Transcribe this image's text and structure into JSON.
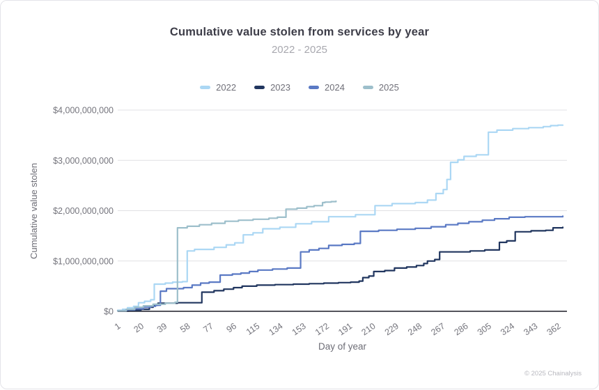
{
  "card": {
    "title": "Cumulative value stolen from services by year",
    "subtitle": "2022 - 2025",
    "footer": "© 2025 Chainalysis"
  },
  "chart_data": {
    "type": "line",
    "style": "step-after",
    "title": "Cumulative value stolen from services by year",
    "subtitle": "2022 - 2025",
    "xlabel": "Day of year",
    "ylabel": "Cumulative value stolen",
    "unit": "USD, point values in billions of dollars",
    "grid": "horizontal",
    "legend_position": "top",
    "xlim": [
      1,
      369
    ],
    "ylim_billions": [
      0,
      4
    ],
    "x_ticks": [
      1,
      20,
      39,
      58,
      77,
      96,
      115,
      134,
      153,
      172,
      191,
      210,
      229,
      248,
      267,
      286,
      305,
      324,
      343,
      362
    ],
    "y_ticks": [
      {
        "v": 0,
        "label": "$0"
      },
      {
        "v": 1,
        "label": "$1,000,000,000"
      },
      {
        "v": 2,
        "label": "$2,000,000,000"
      },
      {
        "v": 3,
        "label": "$3,000,000,000"
      },
      {
        "v": 4,
        "label": "$4,000,000,000"
      }
    ],
    "colors": {
      "grid": "#e0e0e4",
      "zero_axis": "#53535b",
      "axis_text": "#74747c",
      "axis_title_text": "#6d6d76"
    },
    "series": [
      {
        "name": "2022",
        "color": "#abd7f4",
        "points": [
          [
            1,
            0.02
          ],
          [
            5,
            0.04
          ],
          [
            9,
            0.07
          ],
          [
            14,
            0.1
          ],
          [
            18,
            0.17
          ],
          [
            23,
            0.2
          ],
          [
            28,
            0.23
          ],
          [
            31,
            0.54
          ],
          [
            40,
            0.56
          ],
          [
            46,
            0.58
          ],
          [
            54,
            0.59
          ],
          [
            58,
            1.2
          ],
          [
            64,
            1.23
          ],
          [
            80,
            1.27
          ],
          [
            90,
            1.32
          ],
          [
            97,
            1.36
          ],
          [
            104,
            1.52
          ],
          [
            112,
            1.56
          ],
          [
            120,
            1.64
          ],
          [
            134,
            1.67
          ],
          [
            147,
            1.74
          ],
          [
            160,
            1.78
          ],
          [
            174,
            1.88
          ],
          [
            196,
            1.92
          ],
          [
            212,
            2.1
          ],
          [
            226,
            2.14
          ],
          [
            245,
            2.16
          ],
          [
            255,
            2.21
          ],
          [
            262,
            2.34
          ],
          [
            268,
            2.42
          ],
          [
            271,
            2.62
          ],
          [
            274,
            2.96
          ],
          [
            280,
            3.01
          ],
          [
            285,
            3.08
          ],
          [
            295,
            3.11
          ],
          [
            305,
            3.56
          ],
          [
            312,
            3.6
          ],
          [
            325,
            3.63
          ],
          [
            338,
            3.65
          ],
          [
            350,
            3.67
          ],
          [
            356,
            3.69
          ],
          [
            362,
            3.7
          ],
          [
            366,
            3.7
          ]
        ]
      },
      {
        "name": "2023",
        "color": "#21365f",
        "points": [
          [
            1,
            0.01
          ],
          [
            10,
            0.02
          ],
          [
            20,
            0.04
          ],
          [
            27,
            0.08
          ],
          [
            30,
            0.12
          ],
          [
            34,
            0.16
          ],
          [
            50,
            0.17
          ],
          [
            70,
            0.38
          ],
          [
            80,
            0.41
          ],
          [
            88,
            0.44
          ],
          [
            96,
            0.47
          ],
          [
            103,
            0.5
          ],
          [
            115,
            0.52
          ],
          [
            130,
            0.53
          ],
          [
            145,
            0.54
          ],
          [
            158,
            0.55
          ],
          [
            170,
            0.56
          ],
          [
            182,
            0.57
          ],
          [
            192,
            0.58
          ],
          [
            199,
            0.6
          ],
          [
            202,
            0.67
          ],
          [
            207,
            0.7
          ],
          [
            211,
            0.79
          ],
          [
            220,
            0.81
          ],
          [
            228,
            0.86
          ],
          [
            238,
            0.88
          ],
          [
            246,
            0.91
          ],
          [
            252,
            0.95
          ],
          [
            255,
            1.0
          ],
          [
            261,
            1.03
          ],
          [
            265,
            1.18
          ],
          [
            290,
            1.2
          ],
          [
            302,
            1.22
          ],
          [
            314,
            1.37
          ],
          [
            320,
            1.4
          ],
          [
            327,
            1.58
          ],
          [
            340,
            1.6
          ],
          [
            352,
            1.61
          ],
          [
            358,
            1.66
          ],
          [
            366,
            1.67
          ]
        ]
      },
      {
        "name": "2024",
        "color": "#5a79c4",
        "points": [
          [
            1,
            0.01
          ],
          [
            8,
            0.03
          ],
          [
            15,
            0.05
          ],
          [
            22,
            0.08
          ],
          [
            28,
            0.1
          ],
          [
            32,
            0.12
          ],
          [
            36,
            0.4
          ],
          [
            41,
            0.45
          ],
          [
            55,
            0.47
          ],
          [
            62,
            0.52
          ],
          [
            69,
            0.56
          ],
          [
            76,
            0.58
          ],
          [
            85,
            0.72
          ],
          [
            95,
            0.74
          ],
          [
            102,
            0.76
          ],
          [
            109,
            0.79
          ],
          [
            116,
            0.82
          ],
          [
            128,
            0.84
          ],
          [
            140,
            0.86
          ],
          [
            151,
            1.18
          ],
          [
            158,
            1.22
          ],
          [
            166,
            1.25
          ],
          [
            174,
            1.31
          ],
          [
            185,
            1.33
          ],
          [
            195,
            1.35
          ],
          [
            200,
            1.59
          ],
          [
            215,
            1.61
          ],
          [
            230,
            1.63
          ],
          [
            245,
            1.65
          ],
          [
            258,
            1.68
          ],
          [
            270,
            1.72
          ],
          [
            280,
            1.75
          ],
          [
            289,
            1.78
          ],
          [
            300,
            1.81
          ],
          [
            310,
            1.84
          ],
          [
            322,
            1.87
          ],
          [
            335,
            1.88
          ],
          [
            366,
            1.89
          ]
        ]
      },
      {
        "name": "2025",
        "color": "#9dbfcb",
        "points": [
          [
            1,
            0.01
          ],
          [
            8,
            0.04
          ],
          [
            15,
            0.08
          ],
          [
            22,
            0.11
          ],
          [
            30,
            0.14
          ],
          [
            40,
            0.16
          ],
          [
            48,
            0.18
          ],
          [
            50,
            1.66
          ],
          [
            58,
            1.69
          ],
          [
            68,
            1.72
          ],
          [
            78,
            1.75
          ],
          [
            89,
            1.79
          ],
          [
            100,
            1.81
          ],
          [
            112,
            1.83
          ],
          [
            125,
            1.85
          ],
          [
            132,
            1.87
          ],
          [
            139,
            2.03
          ],
          [
            148,
            2.05
          ],
          [
            156,
            2.08
          ],
          [
            162,
            2.1
          ],
          [
            169,
            2.16
          ],
          [
            171,
            2.17
          ],
          [
            176,
            2.18
          ],
          [
            180,
            2.19
          ]
        ]
      }
    ]
  }
}
